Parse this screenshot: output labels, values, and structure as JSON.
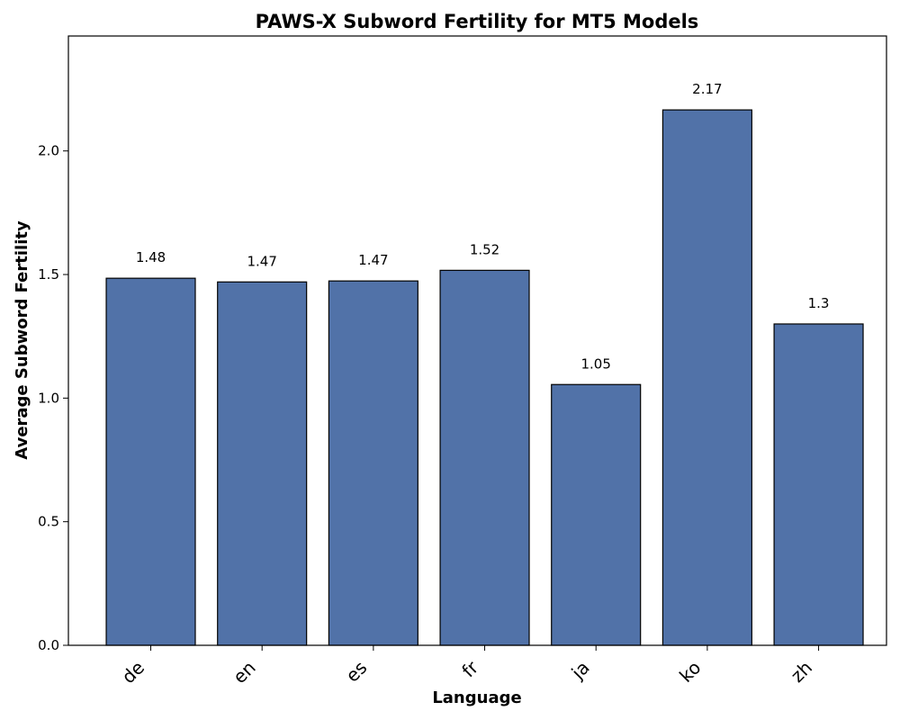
{
  "chart_data": {
    "type": "bar",
    "title": "PAWS-X Subword Fertility for MT5 Models",
    "xlabel": "Language",
    "ylabel": "Average Subword Fertility",
    "categories": [
      "de",
      "en",
      "es",
      "fr",
      "ja",
      "ko",
      "zh"
    ],
    "values": [
      1.485,
      1.47,
      1.474,
      1.517,
      1.055,
      2.166,
      1.3
    ],
    "value_labels": [
      "1.48",
      "1.47",
      "1.47",
      "1.52",
      "1.05",
      "2.17",
      "1.3"
    ],
    "ylim": [
      0,
      2.465
    ],
    "yticks": [
      0.0,
      0.5,
      1.0,
      1.5,
      2.0
    ],
    "ytick_labels": [
      "0.0",
      "0.5",
      "1.0",
      "1.5",
      "2.0"
    ],
    "grid": false,
    "bar_color": "#5172a8",
    "bar_edge_color": "#000000"
  }
}
